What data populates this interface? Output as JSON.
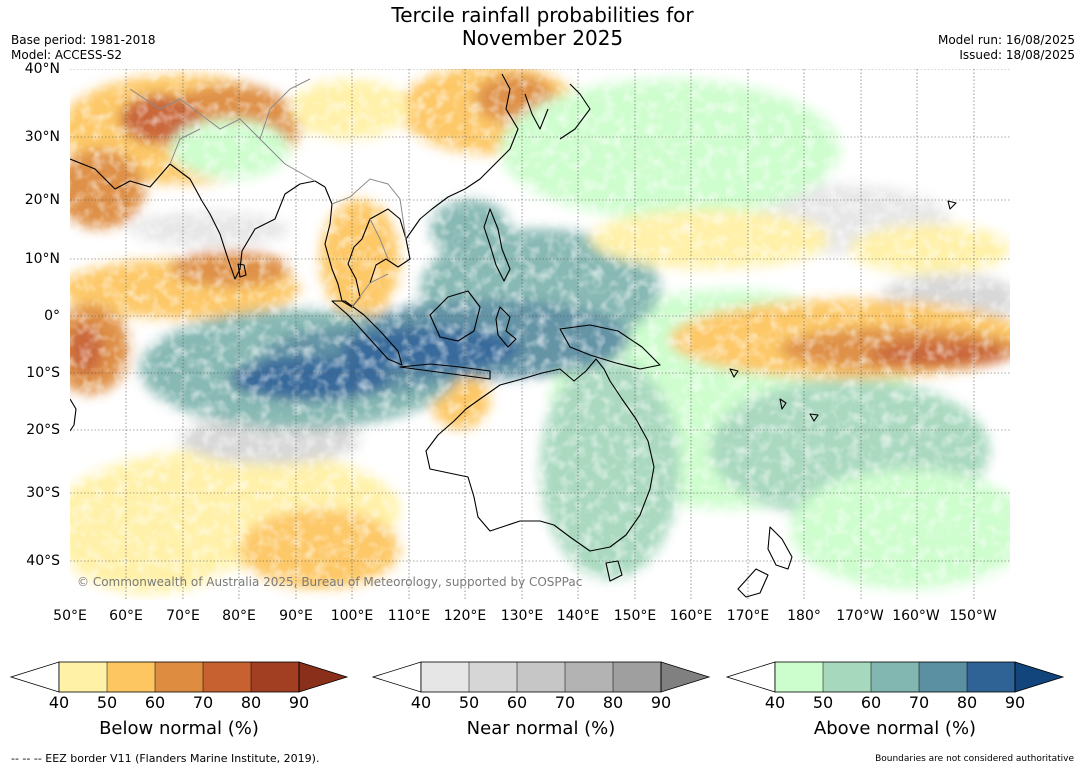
{
  "title": {
    "line1": "Tercile rainfall probabilities for",
    "line2": "November 2025"
  },
  "meta": {
    "base_period": "Base period: 1981-2018",
    "model": "Model: ACCESS-S2",
    "model_run": "Model run: 16/08/2025",
    "issued": "Issued: 18/08/2025"
  },
  "map": {
    "lat_labels": [
      "40°N",
      "30°N",
      "20°N",
      "10°N",
      "0°",
      "10°S",
      "20°S",
      "30°S",
      "40°S"
    ],
    "lon_labels": [
      "50°E",
      "60°E",
      "70°E",
      "80°E",
      "90°E",
      "100°E",
      "110°E",
      "120°E",
      "130°E",
      "140°E",
      "150°E",
      "160°E",
      "170°E",
      "180°",
      "170°W",
      "160°W",
      "150°W"
    ],
    "copyright": "© Commonwealth of Australia 2025, Bureau of Meteorology, supported by COSPPac",
    "colors": {
      "land_outline": "#000000",
      "country_border": "#8a8a8a",
      "grid": "#333333"
    }
  },
  "colorbars": [
    {
      "title": "Below normal (%)",
      "ticks": [
        "40",
        "50",
        "60",
        "70",
        "80",
        "90"
      ],
      "colors": [
        "#fff1a6",
        "#fdc661",
        "#de8c3f",
        "#c86130",
        "#a23f22"
      ],
      "low_color": "#ffffff",
      "high_color": "#8a301a"
    },
    {
      "title": "Near normal (%)",
      "ticks": [
        "40",
        "50",
        "60",
        "70",
        "80",
        "90"
      ],
      "colors": [
        "#e6e6e6",
        "#d6d6d6",
        "#c6c6c6",
        "#b3b3b3",
        "#9f9f9f"
      ],
      "low_color": "#ffffff",
      "high_color": "#808080"
    },
    {
      "title": "Above normal (%)",
      "ticks": [
        "40",
        "50",
        "60",
        "70",
        "80",
        "90"
      ],
      "colors": [
        "#ccfdcc",
        "#a6d8bd",
        "#82b6b0",
        "#5b8fa2",
        "#2f6396"
      ],
      "low_color": "#ffffff",
      "high_color": "#12457c"
    }
  ],
  "footer": {
    "eez_note": "--  --  -- EEZ border V11 (Flanders Marine Institute, 2019).",
    "disclaimer": "Boundaries are not considered authoritative"
  }
}
